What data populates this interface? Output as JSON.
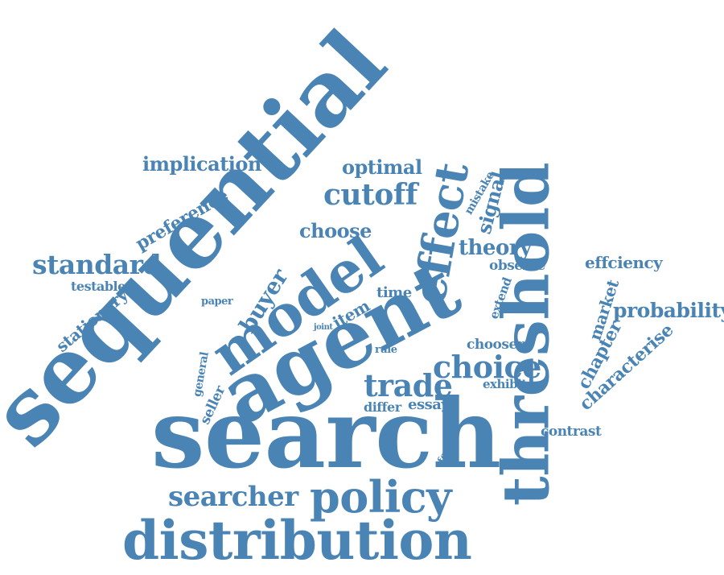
{
  "colors": {
    "word": "#4a84b5",
    "background": "#ffffff"
  },
  "words": [
    "search",
    "sequential",
    "threshold",
    "agent",
    "distribution",
    "model",
    "effect",
    "policy",
    "searcher",
    "cutoff",
    "trade",
    "choice",
    "standard",
    "implication",
    "optimal",
    "preference",
    "buyer",
    "choose",
    "theory",
    "signal",
    "mistake",
    "observe",
    "effciency",
    "probability",
    "market",
    "chapter",
    "characterise",
    "extend",
    "testable",
    "stationary",
    "paper",
    "time",
    "item",
    "joint",
    "rule",
    "general",
    "seller",
    "chooser",
    "exhibit",
    "differ",
    "essay",
    "feature",
    "contrast"
  ]
}
